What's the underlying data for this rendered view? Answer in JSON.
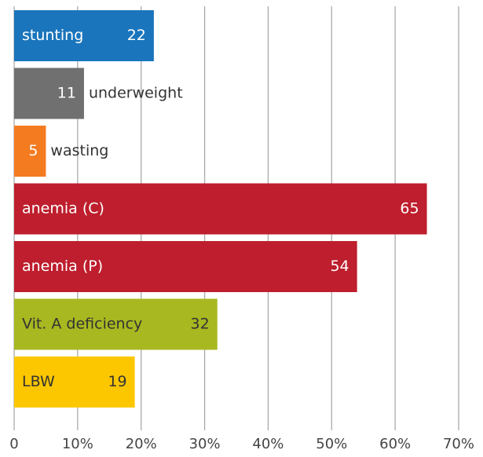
{
  "chart_data": {
    "type": "barh",
    "categories": [
      "stunting",
      "underweight",
      "wasting",
      "anemia (C)",
      "anemia (P)",
      "Vit. A deficiency",
      "LBW"
    ],
    "values": [
      22,
      11,
      5,
      65,
      54,
      32,
      19
    ],
    "colors": [
      "#1a75bc",
      "#707070",
      "#f47b20",
      "#be1e2d",
      "#be1e2d",
      "#a8b820",
      "#fdc700"
    ],
    "xlim": [
      0,
      70
    ],
    "xticks": [
      0,
      {
        "value": 10,
        "label": "10%"
      },
      {
        "value": 20,
        "label": "20%"
      },
      {
        "value": 30,
        "label": "30%"
      },
      {
        "value": 40,
        "label": "40%"
      },
      {
        "value": 50,
        "label": "50%"
      },
      {
        "value": 60,
        "label": "60%"
      },
      {
        "value": 70,
        "label": "70%"
      }
    ],
    "grid": true
  }
}
